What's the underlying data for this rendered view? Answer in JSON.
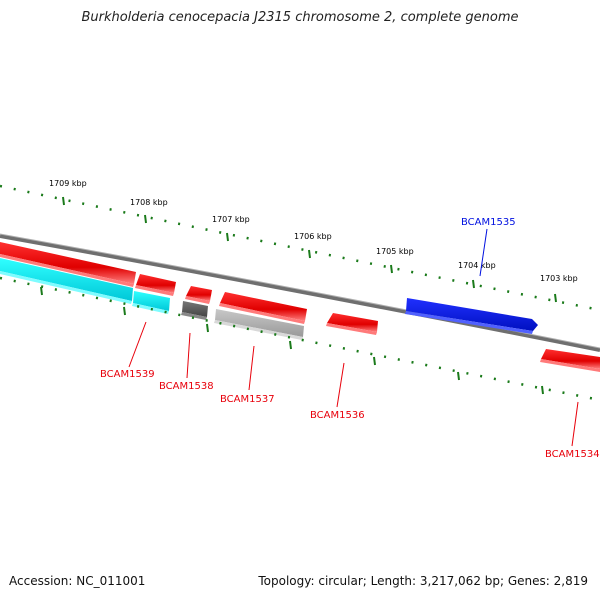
{
  "title": "Burkholderia cenocepacia J2315 chromosome 2, complete genome",
  "accession": "Accession: NC_011001",
  "summary": "Topology: circular; Length: 3,217,062 bp; Genes: 2,819",
  "ticks": [
    "1709 kbp",
    "1708 kbp",
    "1707 kbp",
    "1706 kbp",
    "1705 kbp",
    "1704 kbp",
    "1703 kbp"
  ],
  "genes": [
    "BCAM1539",
    "BCAM1538",
    "BCAM1537",
    "BCAM1536",
    "BCAM1535",
    "BCAM1534"
  ],
  "colors": {
    "forward": "#e8000b",
    "reverse_cyan": "#00e0e0",
    "blue": "#0010e0",
    "gray_dark": "#555555",
    "gray_light": "#aaaaaa",
    "backbone": "#777777",
    "tick": "#1a7a1a"
  }
}
